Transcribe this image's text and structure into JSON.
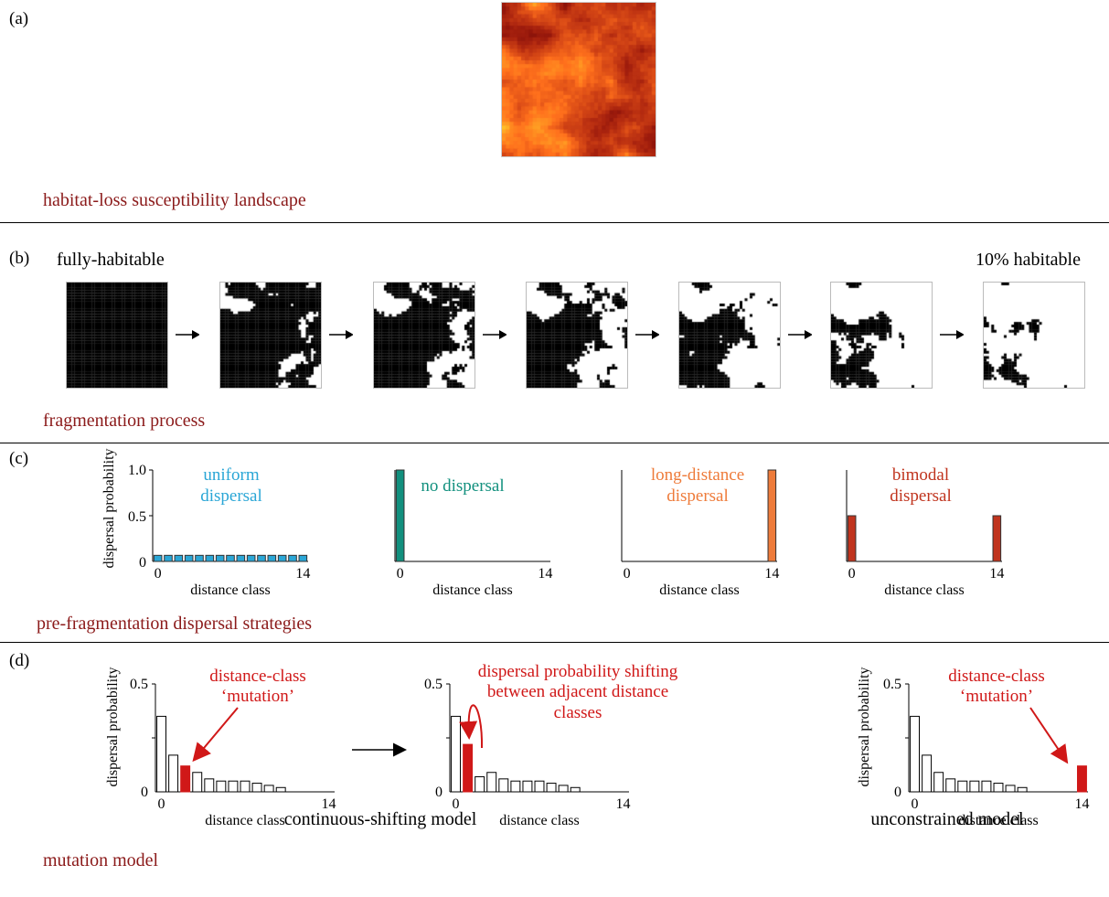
{
  "panels": {
    "a": {
      "label": "(a)",
      "caption": "habitat-loss susceptibility landscape"
    },
    "b": {
      "label": "(b)",
      "caption": "fragmentation process",
      "left_text": "fully-habitable",
      "right_text": "10% habitable",
      "habitable_fractions": [
        1.0,
        0.85,
        0.7,
        0.55,
        0.4,
        0.25,
        0.1
      ]
    },
    "c": {
      "label": "(c)",
      "caption": "pre-fragmentation dispersal strategies",
      "ylabel": "dispersal probability",
      "xlabel": "distance class"
    },
    "d": {
      "label": "(d)",
      "caption": "mutation model",
      "ylabel": "dispersal probability",
      "xlabel": "distance class",
      "left_model": "continuous-shifting model",
      "right_model": "unconstrained  model",
      "ann_mutation_1": "distance-class",
      "ann_mutation_2": "‘mutation’",
      "ann_shift_1": "dispersal probability shifting",
      "ann_shift_2": "between adjacent distance",
      "ann_shift_3": "classes"
    }
  },
  "colors": {
    "uniform": "#2aa6d6",
    "none": "#12907e",
    "long": "#ee7b3a",
    "bimodal": "#c0341e",
    "annotation": "#d01818",
    "caption": "#8b1a1a"
  },
  "chart_data": [
    {
      "type": "bar",
      "title": "uniform dispersal",
      "x": [
        0,
        1,
        2,
        3,
        4,
        5,
        6,
        7,
        8,
        9,
        10,
        11,
        12,
        13,
        14
      ],
      "values": [
        0.0667,
        0.0667,
        0.0667,
        0.0667,
        0.0667,
        0.0667,
        0.0667,
        0.0667,
        0.0667,
        0.0667,
        0.0667,
        0.0667,
        0.0667,
        0.0667,
        0.0667
      ],
      "ylim": [
        0,
        1
      ],
      "yticks": [
        "0",
        "0.5",
        "1.0"
      ],
      "xticks": [
        "0",
        "14"
      ]
    },
    {
      "type": "bar",
      "title": "no dispersal",
      "x": [
        0,
        1,
        2,
        3,
        4,
        5,
        6,
        7,
        8,
        9,
        10,
        11,
        12,
        13,
        14
      ],
      "values": [
        1,
        0,
        0,
        0,
        0,
        0,
        0,
        0,
        0,
        0,
        0,
        0,
        0,
        0,
        0
      ],
      "ylim": [
        0,
        1
      ],
      "xticks": [
        "0",
        "14"
      ]
    },
    {
      "type": "bar",
      "title": "long-distance dispersal",
      "x": [
        0,
        1,
        2,
        3,
        4,
        5,
        6,
        7,
        8,
        9,
        10,
        11,
        12,
        13,
        14
      ],
      "values": [
        0,
        0,
        0,
        0,
        0,
        0,
        0,
        0,
        0,
        0,
        0,
        0,
        0,
        0,
        1
      ],
      "ylim": [
        0,
        1
      ],
      "xticks": [
        "0",
        "14"
      ]
    },
    {
      "type": "bar",
      "title": "bimodal dispersal",
      "x": [
        0,
        1,
        2,
        3,
        4,
        5,
        6,
        7,
        8,
        9,
        10,
        11,
        12,
        13,
        14
      ],
      "values": [
        0.5,
        0,
        0,
        0,
        0,
        0,
        0,
        0,
        0,
        0,
        0,
        0,
        0,
        0,
        0.5
      ],
      "ylim": [
        0,
        1
      ],
      "xticks": [
        "0",
        "14"
      ]
    },
    {
      "type": "bar",
      "title": "",
      "x": [
        0,
        1,
        2,
        3,
        4,
        5,
        6,
        7,
        8,
        9,
        10,
        11,
        12,
        13,
        14
      ],
      "values": [
        0.35,
        0.17,
        0.12,
        0.09,
        0.06,
        0.05,
        0.05,
        0.05,
        0.04,
        0.03,
        0.02,
        0.0,
        0.0,
        0.0,
        0.0
      ],
      "highlight": [
        2
      ],
      "ylim": [
        0,
        0.5
      ],
      "yticks": [
        "0",
        "0.5"
      ],
      "xticks": [
        "0",
        "14"
      ]
    },
    {
      "type": "bar",
      "title": "",
      "x": [
        0,
        1,
        2,
        3,
        4,
        5,
        6,
        7,
        8,
        9,
        10,
        11,
        12,
        13,
        14
      ],
      "values": [
        0.35,
        0.22,
        0.07,
        0.09,
        0.06,
        0.05,
        0.05,
        0.05,
        0.04,
        0.03,
        0.02,
        0.0,
        0.0,
        0.0,
        0.0
      ],
      "highlight": [
        1
      ],
      "ylim": [
        0,
        0.5
      ],
      "yticks": [
        "0",
        "0.5"
      ],
      "xticks": [
        "0",
        "14"
      ]
    },
    {
      "type": "bar",
      "title": "",
      "x": [
        0,
        1,
        2,
        3,
        4,
        5,
        6,
        7,
        8,
        9,
        10,
        11,
        12,
        13,
        14
      ],
      "values": [
        0.35,
        0.17,
        0.09,
        0.06,
        0.05,
        0.05,
        0.05,
        0.04,
        0.03,
        0.02,
        0.0,
        0.0,
        0.0,
        0.0,
        0.12
      ],
      "highlight": [
        14
      ],
      "ylim": [
        0,
        0.5
      ],
      "yticks": [
        "0",
        "0.5"
      ],
      "xticks": [
        "0",
        "14"
      ]
    }
  ]
}
